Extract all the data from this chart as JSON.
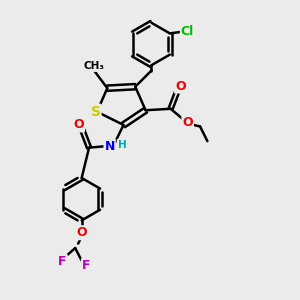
{
  "bg_color": "#ebebeb",
  "bond_color": "#000000",
  "bond_width": 1.8,
  "atom_colors": {
    "S": "#cccc00",
    "N": "#0000ee",
    "O": "#ee0000",
    "Cl": "#00bb00",
    "F": "#bb00bb",
    "C": "#000000",
    "H": "#00aaaa"
  },
  "font_size": 9
}
